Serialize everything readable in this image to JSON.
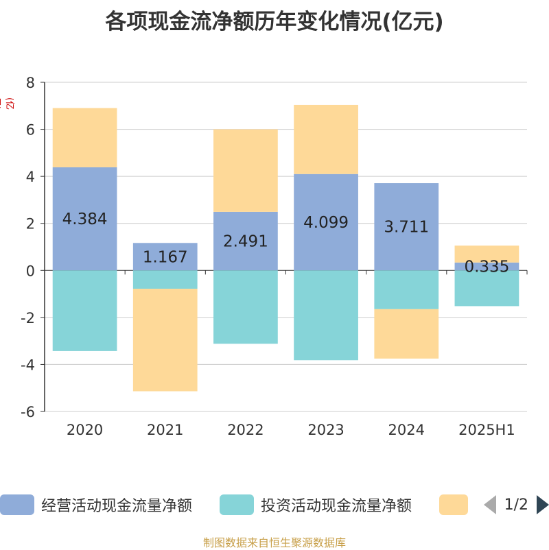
{
  "chart_data": {
    "type": "bar",
    "title": "各项现金流净额历年变化情况(亿元)",
    "ylabel": "(亿元)",
    "xlabel": "",
    "ylim": [
      -6,
      8
    ],
    "yticks": [
      8,
      6,
      4,
      2,
      0,
      -2,
      -4,
      -6
    ],
    "categories": [
      "2020",
      "2021",
      "2022",
      "2023",
      "2024",
      "2025H1"
    ],
    "grid": true,
    "legend_position": "bottom",
    "series": [
      {
        "name": "经营活动现金流量净额",
        "color": "#8facd9",
        "values": [
          4.384,
          1.167,
          2.491,
          4.099,
          3.711,
          0.335
        ],
        "labels": [
          "4.384",
          "1.167",
          "2.491",
          "4.099",
          "3.711",
          "0.335"
        ]
      },
      {
        "name": "投资活动现金流量净额",
        "color": "#86d4d8",
        "values": [
          -3.43,
          -0.78,
          -3.12,
          -3.82,
          -1.65,
          -1.52
        ]
      },
      {
        "name": "",
        "color": "#fed998",
        "values": [
          2.52,
          -4.36,
          3.51,
          2.94,
          -2.1,
          0.72
        ]
      }
    ]
  },
  "legend": {
    "page": "1/2"
  },
  "footer": "制图数据来自恒生聚源数据库"
}
